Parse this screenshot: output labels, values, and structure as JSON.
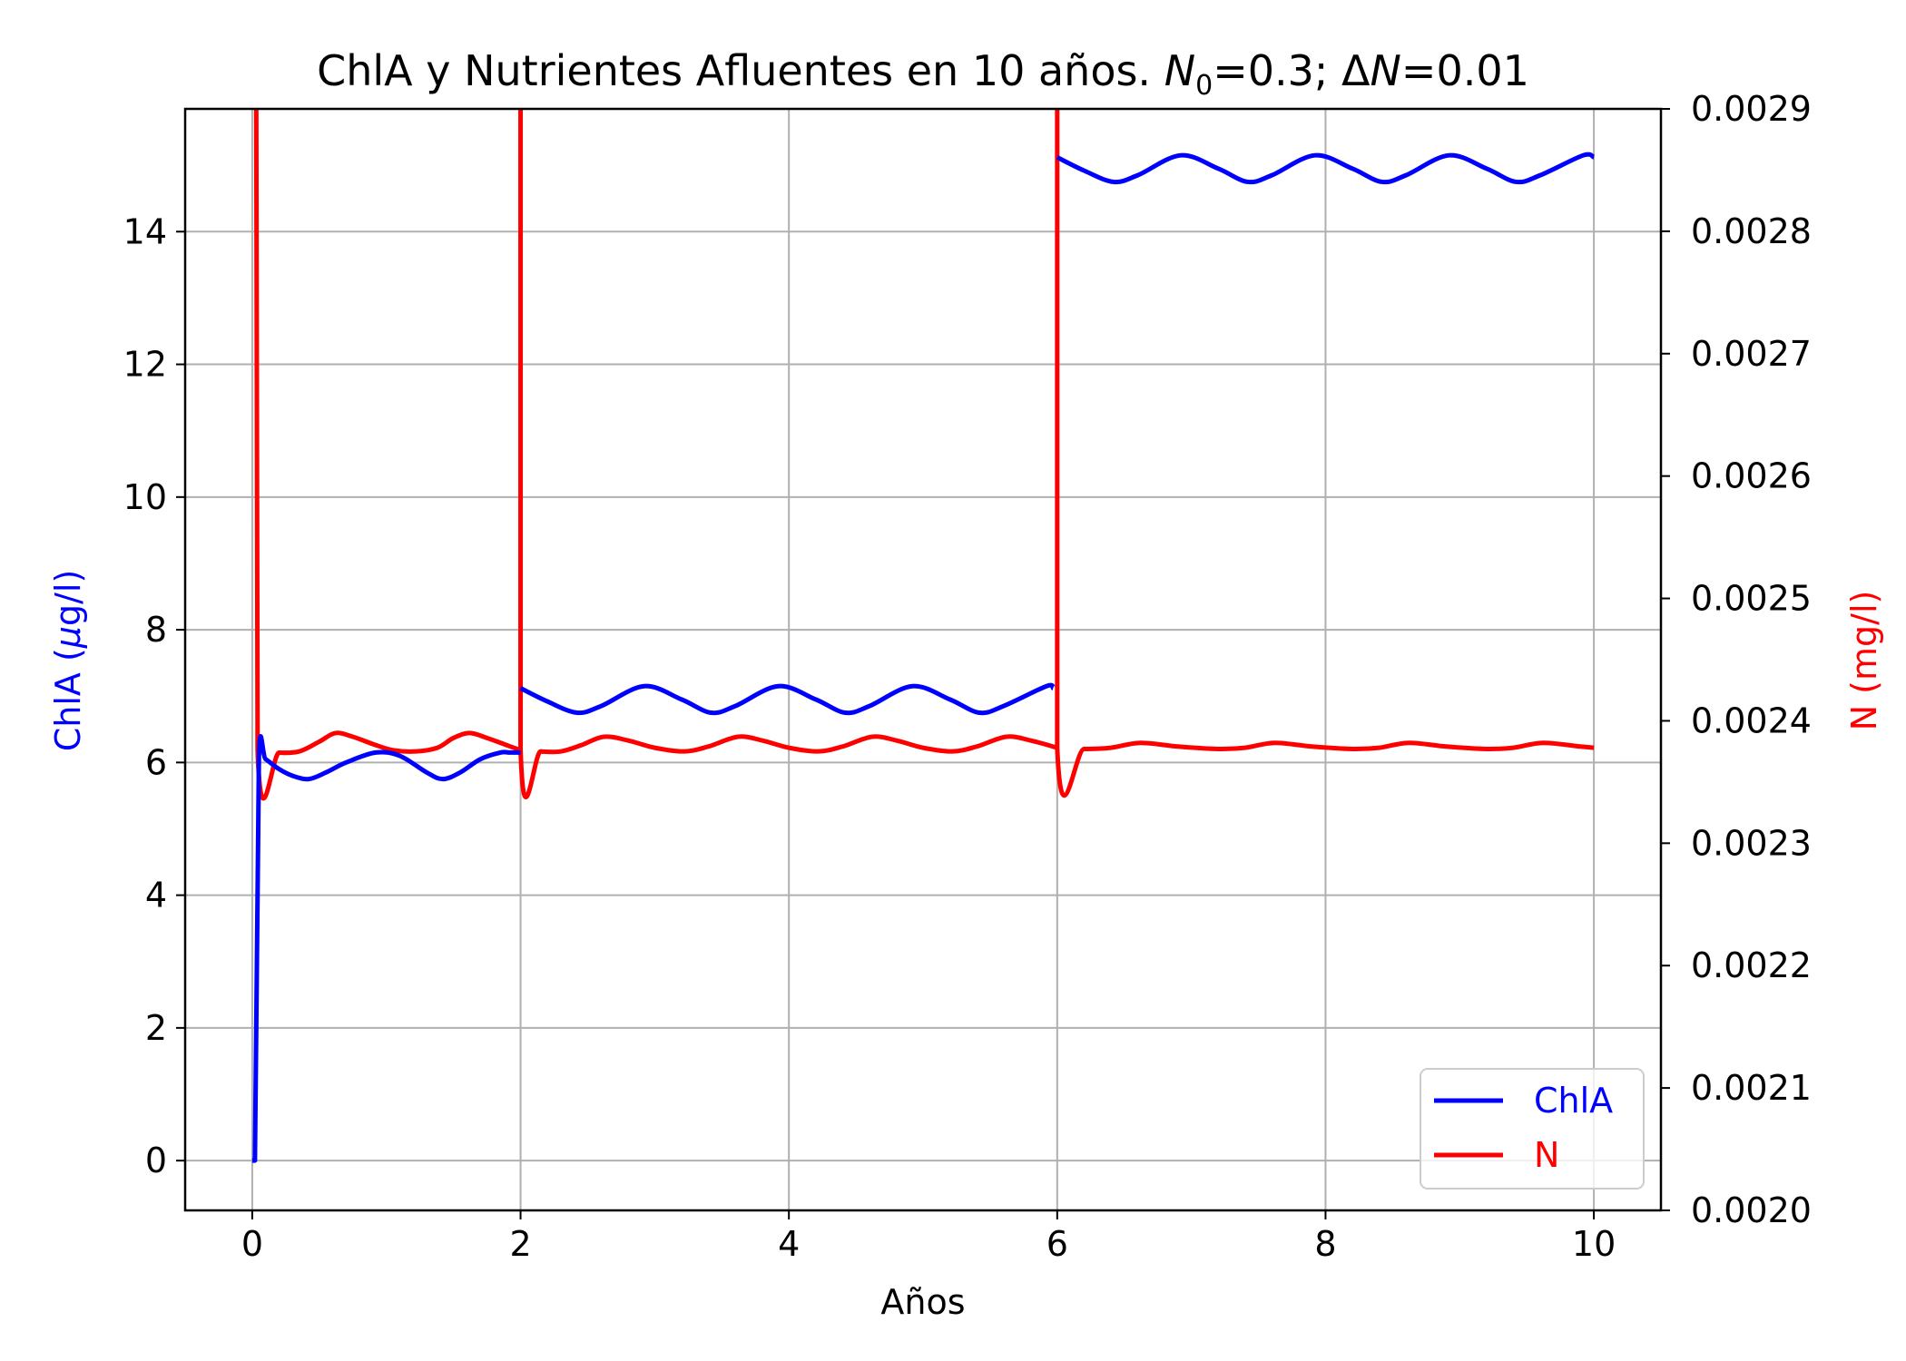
{
  "chart_data": {
    "type": "line",
    "title": "ChlA y Nutrientes Afluentes en 10 años. N₀=0.3; ΔN=0.01",
    "title_parts": {
      "prefix": "ChlA y Nutrientes Afluentes en 10 años. ",
      "n_symbol": "N",
      "n_subscript": "0",
      "n0_value": "=0.3; Δ",
      "dn_symbol": "N",
      "dn_value": "=0.01"
    },
    "xlabel": "Años",
    "ylabel": "ChlA (μg/l)",
    "ylabel_parts": {
      "prefix": "ChlA (",
      "mu": "μ",
      "suffix": "g/l)"
    },
    "y2label": "N (mg/l)",
    "xlim": [
      -0.5,
      10.5
    ],
    "ylim": [
      -0.75,
      15.85
    ],
    "y2lim": [
      0.002,
      0.0029
    ],
    "x_ticks": [
      "0",
      "2",
      "4",
      "6",
      "8",
      "10"
    ],
    "y_ticks": [
      "0",
      "2",
      "4",
      "6",
      "8",
      "10",
      "12",
      "14"
    ],
    "y2_ticks": [
      "0.0020",
      "0.0021",
      "0.0022",
      "0.0023",
      "0.0024",
      "0.0025",
      "0.0026",
      "0.0027",
      "0.0028",
      "0.0029"
    ],
    "grid": true,
    "legend_position": "lower-right",
    "series": [
      {
        "name": "ChlA",
        "axis": "left",
        "color": "#0000ff",
        "segments": [
          {
            "x": [
              0,
              0.02,
              0.03,
              0.05,
              0.1,
              0.2,
              0.3,
              0.42,
              0.55,
              0.7,
              0.92,
              1.1,
              1.3,
              1.42,
              1.55,
              1.7,
              1.85,
              1.92,
              2.0
            ],
            "y": [
              0,
              0,
              2.0,
              6.1,
              6.05,
              5.9,
              5.8,
              5.75,
              5.85,
              6.0,
              6.15,
              6.1,
              5.85,
              5.75,
              5.85,
              6.05,
              6.15,
              6.15,
              6.15
            ]
          },
          {
            "x": [
              2.0,
              2.2,
              2.42,
              2.6,
              2.92,
              3.2,
              3.42,
              3.6,
              3.92,
              4.2,
              4.42,
              4.6,
              4.92,
              5.2,
              5.42,
              5.6,
              5.92,
              5.97
            ],
            "y": [
              7.12,
              6.92,
              6.75,
              6.85,
              7.15,
              6.95,
              6.75,
              6.85,
              7.15,
              6.95,
              6.75,
              6.85,
              7.15,
              6.95,
              6.75,
              6.85,
              7.15,
              7.12
            ]
          },
          {
            "x": [
              6.0,
              6.2,
              6.42,
              6.6,
              6.92,
              7.2,
              7.42,
              7.6,
              7.92,
              8.2,
              8.42,
              8.6,
              8.92,
              9.2,
              9.42,
              9.6,
              9.92,
              10.0
            ],
            "y": [
              15.12,
              14.92,
              14.75,
              14.85,
              15.15,
              14.95,
              14.75,
              14.85,
              15.15,
              14.95,
              14.75,
              14.85,
              15.15,
              14.95,
              14.75,
              14.85,
              15.15,
              15.12
            ]
          }
        ]
      },
      {
        "name": "N",
        "axis": "right",
        "color": "#ff0000",
        "segments": [
          {
            "x": [
              0.02,
              0.03,
              0.04,
              0.2,
              0.35,
              0.5,
              0.62,
              0.75,
              0.9,
              1.05,
              1.22,
              1.38,
              1.5,
              1.62,
              1.75,
              1.9,
              2.0
            ],
            "y": [
              0.0029,
              0.0029,
              0.002376,
              0.002374,
              0.002375,
              0.002383,
              0.00239,
              0.002387,
              0.002381,
              0.002376,
              0.002375,
              0.002378,
              0.002386,
              0.00239,
              0.002386,
              0.00238,
              0.002376
            ]
          },
          {
            "x": [
              2.0,
              2.0,
              2.15,
              2.3,
              2.45,
              2.62,
              2.8,
              3.0,
              3.22,
              3.4,
              3.62,
              3.8,
              4.0,
              4.22,
              4.4,
              4.62,
              4.8,
              5.0,
              5.22,
              5.4,
              5.62,
              5.8,
              6.0
            ],
            "y": [
              0.0029,
              0.002377,
              0.002375,
              0.002375,
              0.00238,
              0.002387,
              0.002384,
              0.002378,
              0.002375,
              0.002379,
              0.002387,
              0.002384,
              0.002378,
              0.002375,
              0.002379,
              0.002387,
              0.002384,
              0.002378,
              0.002375,
              0.002379,
              0.002387,
              0.002384,
              0.002378
            ]
          },
          {
            "x": [
              6.0,
              6.0,
              6.2,
              6.4,
              6.62,
              6.9,
              7.2,
              7.4,
              7.62,
              7.9,
              8.2,
              8.4,
              8.62,
              8.9,
              9.2,
              9.4,
              9.62,
              9.9,
              10.0
            ],
            "y": [
              0.0029,
              0.002378,
              0.002377,
              0.002378,
              0.002382,
              0.002379,
              0.002377,
              0.002378,
              0.002382,
              0.002379,
              0.002377,
              0.002378,
              0.002382,
              0.002379,
              0.002377,
              0.002378,
              0.002382,
              0.002379,
              0.002378
            ]
          }
        ]
      }
    ]
  }
}
